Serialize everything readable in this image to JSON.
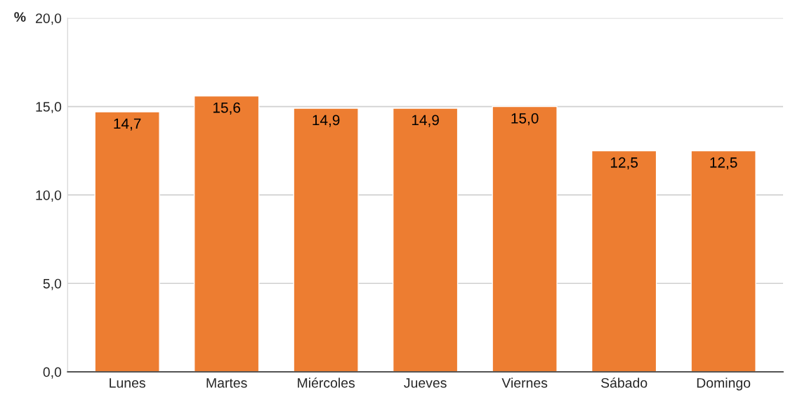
{
  "chart_data": {
    "type": "bar",
    "ylabel": "%",
    "categories": [
      "Lunes",
      "Martes",
      "Miércoles",
      "Jueves",
      "Viernes",
      "Sábado",
      "Domingo"
    ],
    "values": [
      14.7,
      15.6,
      14.9,
      14.9,
      15.0,
      12.5,
      12.5
    ],
    "value_labels": [
      "14,7",
      "15,6",
      "14,9",
      "14,9",
      "15,0",
      "12,5",
      "12,5"
    ],
    "color": "#ed7d31",
    "ylim": [
      0,
      20
    ],
    "yticks": [
      {
        "value": 0,
        "label": "0,0"
      },
      {
        "value": 5,
        "label": "5,0"
      },
      {
        "value": 10,
        "label": "10,0"
      },
      {
        "value": 15,
        "label": "15,0"
      },
      {
        "value": 20,
        "label": "20,0"
      }
    ],
    "grid": "y"
  }
}
